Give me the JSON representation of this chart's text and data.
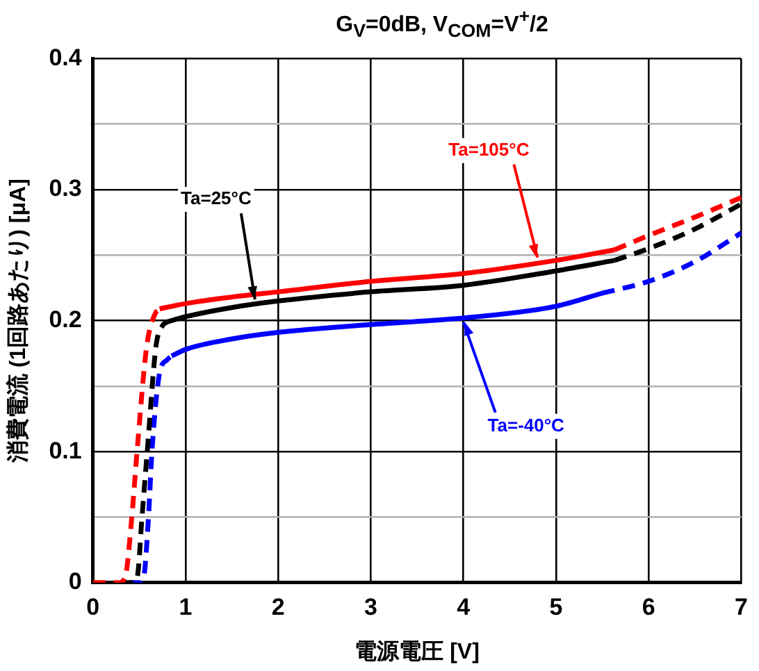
{
  "chart_data": {
    "type": "line",
    "title": "G$_{V}$=0dB, V$_{COM}$=V$^{+}$/2",
    "xlabel": "電源電圧 [V]",
    "ylabel": "消費電流 (1回路あたり) [μA]",
    "xlim": [
      0,
      7
    ],
    "xticks": [
      0,
      1,
      2,
      3,
      4,
      5,
      6,
      7
    ],
    "ylim": [
      0,
      0.4
    ],
    "yticks": [
      0,
      {
        "value": 0.05,
        "label": null
      },
      0.1,
      {
        "value": 0.15,
        "label": null
      },
      0.2,
      {
        "value": 0.25,
        "label": null
      },
      0.3,
      {
        "value": 0.35,
        "label": null
      },
      0.4
    ],
    "grid": true,
    "legend": false,
    "marker": "none",
    "series": [
      {
        "color": "#ff0000",
        "line_style": "dashed",
        "x": [
          0,
          0.28,
          0.35,
          0.42,
          0.48,
          0.58,
          0.67,
          0.72
        ],
        "values": [
          0,
          0,
          0.005,
          0.05,
          0.103,
          0.18,
          0.205,
          0.209
        ]
      },
      {
        "color": "#ff0000",
        "line_style": "solid",
        "x": [
          0.72,
          1,
          1.5,
          2,
          3,
          4,
          5,
          5.63
        ],
        "values": [
          0.209,
          0.213,
          0.218,
          0.222,
          0.23,
          0.236,
          0.246,
          0.254
        ]
      },
      {
        "color": "#ff0000",
        "line_style": "dashed",
        "x": [
          5.63,
          6,
          6.5,
          7
        ],
        "values": [
          0.254,
          0.265,
          0.279,
          0.294
        ]
      },
      {
        "color": "#000000",
        "line_style": "dashed",
        "x": [
          0.3,
          0.42,
          0.48,
          0.53,
          0.59,
          0.68,
          0.75,
          0.8
        ],
        "values": [
          0,
          0,
          0.005,
          0.05,
          0.103,
          0.18,
          0.196,
          0.199
        ]
      },
      {
        "color": "#000000",
        "line_style": "solid",
        "x": [
          0.8,
          1,
          1.5,
          2,
          3,
          4,
          5,
          5.63
        ],
        "values": [
          0.199,
          0.203,
          0.21,
          0.215,
          0.222,
          0.227,
          0.238,
          0.246
        ]
      },
      {
        "color": "#000000",
        "line_style": "dashed",
        "x": [
          5.63,
          6,
          6.5,
          7
        ],
        "values": [
          0.246,
          0.255,
          0.27,
          0.289
        ]
      },
      {
        "color": "#0000ff",
        "line_style": "dashed",
        "x": [
          0.4,
          0.5,
          0.55,
          0.6,
          0.64,
          0.72,
          0.8,
          0.85
        ],
        "values": [
          0,
          0,
          0.005,
          0.05,
          0.103,
          0.16,
          0.17,
          0.173
        ]
      },
      {
        "color": "#0000ff",
        "line_style": "solid",
        "x": [
          0.85,
          1,
          1.5,
          2,
          3,
          4,
          5,
          5.5
        ],
        "values": [
          0.173,
          0.178,
          0.186,
          0.191,
          0.197,
          0.202,
          0.211,
          0.221
        ]
      },
      {
        "color": "#0000ff",
        "line_style": "dashed",
        "x": [
          5.5,
          6,
          6.5,
          7
        ],
        "values": [
          0.221,
          0.23,
          0.245,
          0.267
        ]
      }
    ],
    "annotations": [
      {
        "text": "Ta=105°C",
        "x": 4.8,
        "y": 0.245
      },
      {
        "text": "Ta=25°C",
        "x": 1.75,
        "y": 0.213
      },
      {
        "text": "Ta=-40°C",
        "x": 4,
        "y": 0.202
      }
    ]
  }
}
